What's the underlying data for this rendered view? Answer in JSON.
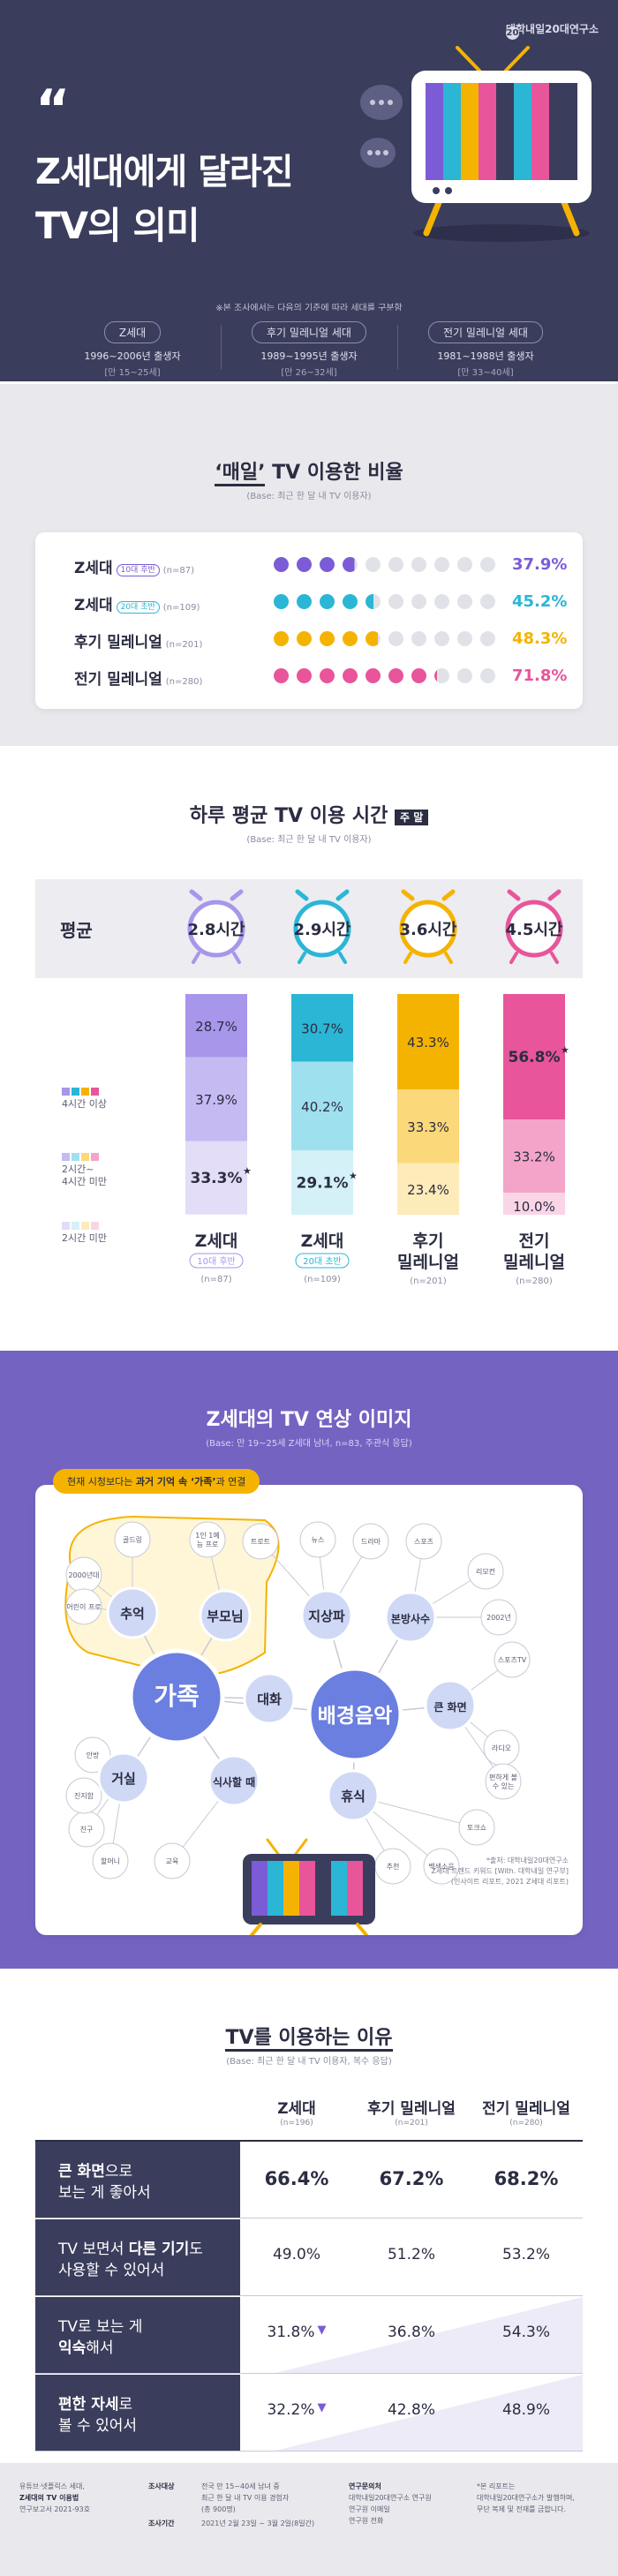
{
  "header": {
    "logo": "대학내일20대연구소",
    "quote": "“",
    "title_line1": "Z세대에게 달라진",
    "title_line2": "TV의 의미",
    "note": "※본 조사에서는 다음의 기준에 따라 세대를 구분함"
  },
  "generations": [
    {
      "name": "Z세대",
      "years": "1996~2006년 출생자",
      "age": "[만 15~25세]"
    },
    {
      "name": "후기 밀레니얼 세대",
      "years": "1989~1995년 출생자",
      "age": "[만 26~32세]"
    },
    {
      "name": "전기 밀레니얼 세대",
      "years": "1981~1988년 출생자",
      "age": "[만 33~40세]"
    }
  ],
  "colors": {
    "z10": "#7b5cd6",
    "z20": "#2bb6d6",
    "late": "#f5b301",
    "early": "#e8559a",
    "dark": "#3b3d5c",
    "empty": "#e1e2e8"
  },
  "daily": {
    "title_pre": "‘매일’",
    "title_post": " TV 이용한 비율",
    "base": "(Base: 최근 한 달 내 TV 이용자)",
    "rows": [
      {
        "label": "Z세대",
        "tag": "10대 후반",
        "n": "(n=87)",
        "pct": "37.9%",
        "value": 37.9,
        "color": "#7b5cd6"
      },
      {
        "label": "Z세대",
        "tag": "20대 초반",
        "n": "(n=109)",
        "pct": "45.2%",
        "value": 45.2,
        "color": "#2bb6d6"
      },
      {
        "label": "후기 밀레니얼",
        "tag": "",
        "n": "(n=201)",
        "pct": "48.3%",
        "value": 48.3,
        "color": "#f5b301"
      },
      {
        "label": "전기 밀레니얼",
        "tag": "",
        "n": "(n=280)",
        "pct": "71.8%",
        "value": 71.8,
        "color": "#e8559a"
      }
    ]
  },
  "chart_data": [
    {
      "type": "bar",
      "title": "하루 평균 TV 이용 시간",
      "title_badge": "주 말",
      "base": "(Base: 최근 한 달 내 TV 이용자)",
      "avg_label": "평균",
      "averages": [
        "2.8시간",
        "2.9시간",
        "3.6시간",
        "4.5시간"
      ],
      "avg_values": [
        2.8,
        2.9,
        3.6,
        4.5
      ],
      "categories": [
        {
          "line1": "Z세대",
          "line2": "",
          "tag": "10대 후반",
          "n": "(n=87)"
        },
        {
          "line1": "Z세대",
          "line2": "",
          "tag": "20대 초반",
          "n": "(n=109)"
        },
        {
          "line1": "후기",
          "line2": "밀레니얼",
          "tag": "",
          "n": "(n=201)"
        },
        {
          "line1": "전기",
          "line2": "밀레니얼",
          "tag": "",
          "n": "(n=280)"
        }
      ],
      "series": [
        {
          "name": "4시간 이상",
          "values": [
            28.7,
            30.7,
            43.3,
            56.8
          ],
          "labels": [
            "28.7%",
            "30.7%",
            "43.3%",
            "56.8%"
          ]
        },
        {
          "name": "2시간~ 4시간 미만",
          "values": [
            37.9,
            40.2,
            33.3,
            33.2
          ],
          "labels": [
            "37.9%",
            "40.2%",
            "33.3%",
            "33.2%"
          ]
        },
        {
          "name": "2시간 미만",
          "values": [
            33.3,
            29.1,
            23.4,
            10.0
          ],
          "labels": [
            "33.3%",
            "29.1%",
            "23.4%",
            "10.0%"
          ]
        }
      ],
      "palettes": [
        [
          "#a796ea",
          "#c6baf2",
          "#e3ddf8"
        ],
        [
          "#2bb6d6",
          "#9fe0ef",
          "#d4f1f8"
        ],
        [
          "#f5b301",
          "#fbd87a",
          "#fdebb9"
        ],
        [
          "#e8559a",
          "#f3a4c8",
          "#fad5e5"
        ]
      ],
      "stars": [
        [
          2
        ],
        [
          2
        ],
        [],
        [
          0
        ]
      ]
    },
    {
      "type": "table",
      "title": "TV를 이용하는 이유",
      "base": "(Base: 최근 한 달 내 TV 이용자, 복수 응답)",
      "columns": [
        {
          "name": "Z세대",
          "n": "(n=196)"
        },
        {
          "name": "후기 밀레니얼",
          "n": "(n=201)"
        },
        {
          "name": "전기 밀레니얼",
          "n": "(n=280)"
        }
      ],
      "rows": [
        {
          "line1_bold": "큰 화면",
          "line1_rest": "으로",
          "line2": "보는 게 좋아서",
          "values": [
            "66.4%",
            "67.2%",
            "68.2%"
          ],
          "nums": [
            66.4,
            67.2,
            68.2
          ],
          "down": [
            false,
            false,
            false
          ],
          "bold": true
        },
        {
          "line1_plain": "TV 보면서 ",
          "line1_bold": "다른 기기",
          "line1_rest": "도",
          "line2": "사용할 수 있어서",
          "values": [
            "49.0%",
            "51.2%",
            "53.2%"
          ],
          "nums": [
            49.0,
            51.2,
            53.2
          ],
          "down": [
            false,
            false,
            false
          ],
          "bold": false
        },
        {
          "line1_plain": "TV로 보는 게",
          "line2_bold": "익숙",
          "line2": "해서",
          "values": [
            "31.8%",
            "36.8%",
            "54.3%"
          ],
          "nums": [
            31.8,
            36.8,
            54.3
          ],
          "down": [
            true,
            false,
            false
          ],
          "bold": false
        },
        {
          "line1_bold": "편한 자세",
          "line1_rest": "로",
          "line2": "볼 수 있어서",
          "values": [
            "32.2%",
            "42.8%",
            "48.9%"
          ],
          "nums": [
            32.2,
            42.8,
            48.9
          ],
          "down": [
            true,
            false,
            false
          ],
          "bold": false
        }
      ]
    }
  ],
  "network": {
    "title": "Z세대의 TV 연상 이미지",
    "base": "(Base: 만 19~25세 Z세대 남녀, n=83, 주관식 응답)",
    "banner_pre": "현재 시청보다는 ",
    "banner_bold": "과거 기억 속 ‘가족’",
    "banner_post": "과 연결",
    "source_lines": [
      "*출처: 대학내일20대연구소",
      "Z세대 트렌드 키워드 [With. 대학내일 연구부]",
      "(인사이트 리포트, 2021 Z세대 리포트)"
    ],
    "hubs": [
      "가족",
      "배경음악"
    ],
    "mids": [
      "추억",
      "부모님",
      "대화",
      "거실",
      "식사할 때",
      "지상파",
      "본방사수",
      "큰 화면",
      "휴식"
    ],
    "leaves": [
      "골드링",
      "2000년대",
      "어린이 프로",
      "1인 1예능 프로",
      "트로트",
      "뉴스",
      "드라마",
      "스포츠",
      "리모컨",
      "교육",
      "친구",
      "할머니",
      "진지함",
      "안방",
      "토크쇼",
      "2002년",
      "스포츠TV",
      "라디오",
      "편하게 볼 수 있는",
      "추천",
      "백색소음"
    ]
  },
  "footer": {
    "c1": [
      "유튜브·넷플릭스 세대,",
      "Z세대의 TV 이용법",
      "연구보고서 2021-93호"
    ],
    "c2_head": "조사대상",
    "c2": [
      "전국 만 15~40세 남녀 중",
      "최근 한 달 내 TV 이용 경험자",
      "(총 900명)"
    ],
    "c3_head": "조사기간",
    "c3": [
      "2021년 2월 23일 ~ 3월 2일(8일간)"
    ],
    "c4_head": "연구문의처",
    "c4": [
      "대학내일20대연구소 연구원",
      "연구원 이메일",
      "연구원 전화"
    ],
    "c5": [
      "*본 리포트는",
      "대학내일20대연구소가 발행하며,",
      "무단 복제 및 전재를 금합니다."
    ]
  }
}
